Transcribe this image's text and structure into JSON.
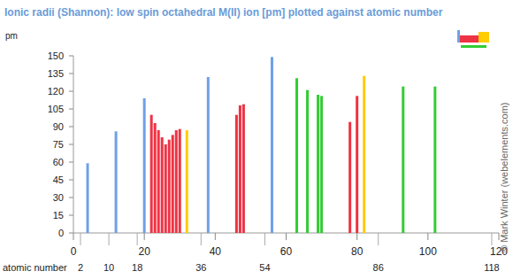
{
  "chart_data": {
    "type": "bar",
    "title": "Ionic radii (Shannon): low spin octahedral M(II) ion [pm] plotted against atomic number",
    "y_label": "pm",
    "x_label": "atomic number",
    "copyright": "© Mark Winter (webelements.com)",
    "x": [
      4,
      12,
      20,
      22,
      23,
      24,
      25,
      26,
      27,
      28,
      29,
      30,
      32,
      38,
      46,
      47,
      48,
      56,
      63,
      66,
      69,
      70,
      78,
      80,
      82,
      93,
      102
    ],
    "values": [
      59,
      86,
      114,
      100,
      93,
      87,
      81,
      75,
      79,
      83,
      87,
      88,
      87,
      132,
      100,
      108,
      109,
      149,
      131,
      121,
      117,
      116,
      94,
      116,
      133,
      124,
      124
    ],
    "colors": [
      "#6fa0e8",
      "#6fa0e8",
      "#6fa0e8",
      "#ee3344",
      "#ee3344",
      "#ee3344",
      "#ee3344",
      "#ee3344",
      "#ee3344",
      "#ee3344",
      "#ee3344",
      "#ee3344",
      "#ffcc00",
      "#6fa0e8",
      "#ee3344",
      "#ee3344",
      "#ee3344",
      "#6fa0e8",
      "#33cc33",
      "#33cc33",
      "#33cc33",
      "#33cc33",
      "#ee3344",
      "#ee3344",
      "#ffcc00",
      "#33cc33",
      "#33cc33"
    ],
    "xlim": [
      0,
      120
    ],
    "xticks": [
      0,
      20,
      40,
      60,
      80,
      100,
      120
    ],
    "noble_gas_ticks": [
      2,
      10,
      18,
      36,
      54,
      86,
      118
    ],
    "ylim": [
      0,
      150
    ],
    "yticks": [
      0,
      15,
      30,
      45,
      60,
      75,
      90,
      105,
      120,
      135,
      150
    ],
    "grid": false
  }
}
